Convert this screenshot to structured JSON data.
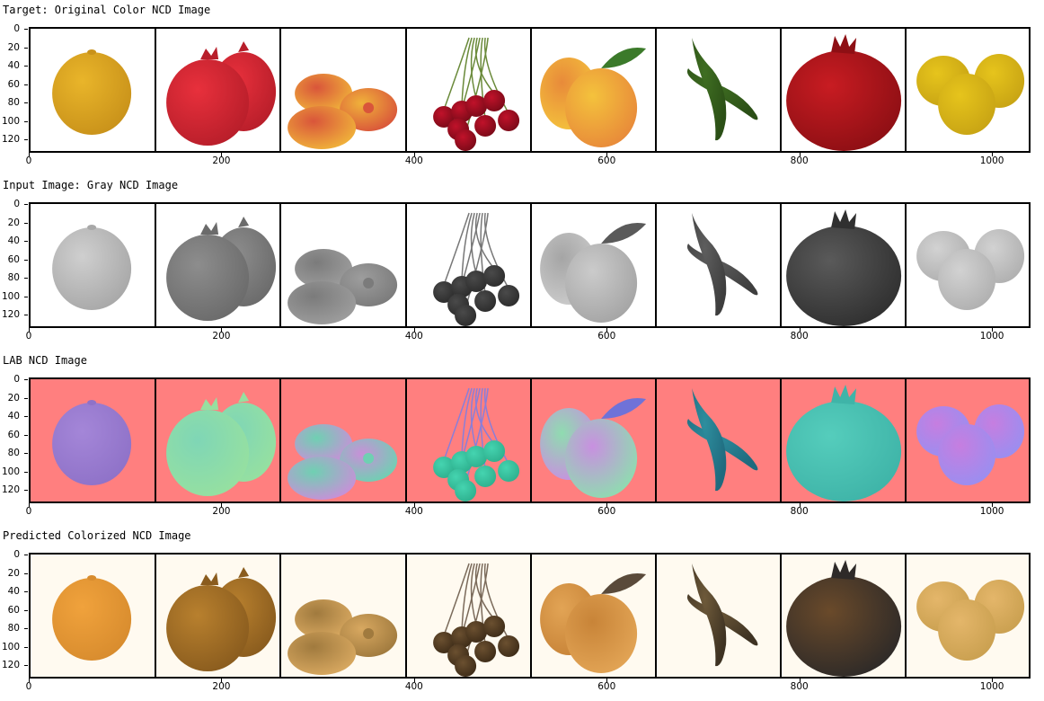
{
  "panels": [
    {
      "title": "Target: Original Color NCD Image",
      "mode": "color"
    },
    {
      "title": "Input Image: Gray NCD Image",
      "mode": "gray"
    },
    {
      "title": "LAB NCD Image",
      "mode": "lab"
    },
    {
      "title": "Predicted Colorized NCD Image",
      "mode": "pred"
    }
  ],
  "y_tick_labels": [
    "0",
    "20",
    "40",
    "60",
    "80",
    "100",
    "120"
  ],
  "x_tick_labels": [
    "0",
    "200",
    "400",
    "600",
    "800",
    "1000"
  ],
  "fruits": [
    "lemon",
    "pomegranate",
    "peaches",
    "cherries",
    "peach",
    "chili-peppers",
    "pomegranate",
    "lemons"
  ],
  "colors": {
    "lab_background": "#ff7f7f",
    "pred_background": "#fffaf0",
    "frame": "#000000"
  }
}
